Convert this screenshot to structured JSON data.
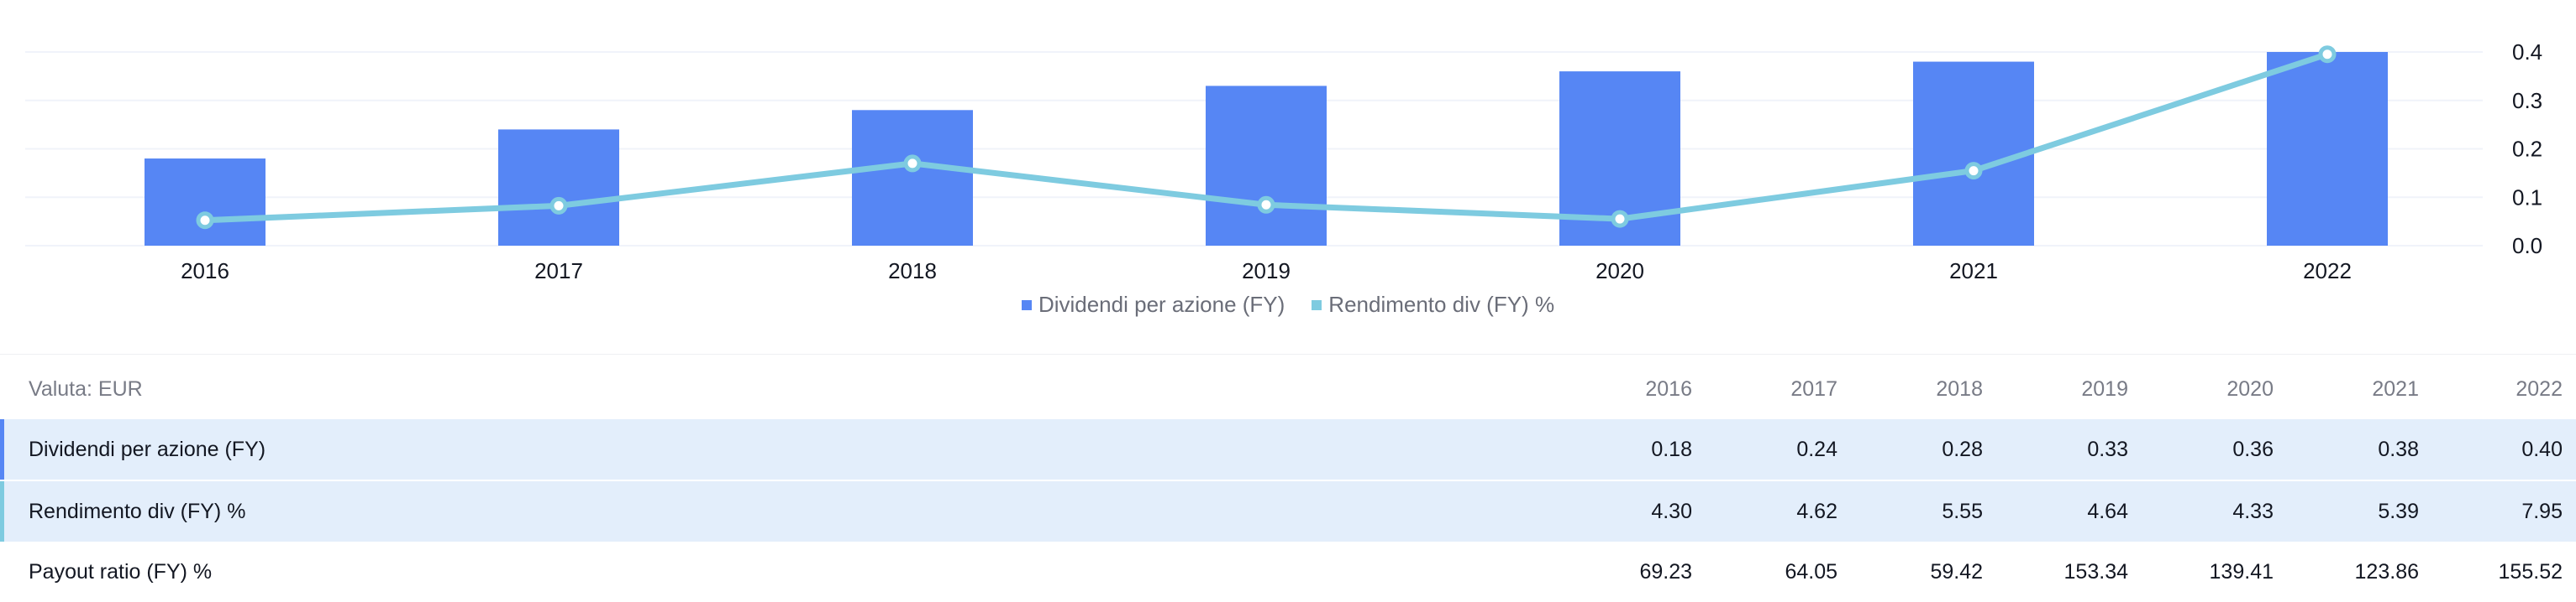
{
  "chart_data": {
    "type": "bar",
    "categories": [
      "2016",
      "2017",
      "2018",
      "2019",
      "2020",
      "2021",
      "2022"
    ],
    "series": [
      {
        "name": "Dividendi per azione (FY)",
        "kind": "bar",
        "color": "#5686f4",
        "values": [
          0.18,
          0.24,
          0.28,
          0.33,
          0.36,
          0.38,
          0.4
        ]
      },
      {
        "name": "Rendimento div (FY) %",
        "kind": "line",
        "color": "#7ecbe0",
        "values": [
          4.3,
          4.62,
          5.55,
          4.64,
          4.33,
          5.39,
          7.95
        ]
      }
    ],
    "y_ticks": [
      "0.4",
      "0.3",
      "0.2",
      "0.1",
      "0.0"
    ],
    "ylim": [
      0,
      0.4
    ],
    "legend_position": "bottom-center",
    "grid": true
  },
  "legend": {
    "items": [
      {
        "label": "Dividendi per azione (FY)",
        "color": "#5686f4"
      },
      {
        "label": "Rendimento div (FY) %",
        "color": "#7ecbe0"
      }
    ]
  },
  "table": {
    "currency_label": "Valuta: EUR",
    "years": [
      "2016",
      "2017",
      "2018",
      "2019",
      "2020",
      "2021",
      "2022"
    ],
    "rows": [
      {
        "label": "Dividendi per azione (FY)",
        "accent": "#5686f4",
        "values": [
          "0.18",
          "0.24",
          "0.28",
          "0.33",
          "0.36",
          "0.38",
          "0.40"
        ]
      },
      {
        "label": "Rendimento div (FY) %",
        "accent": "#7ecbe0",
        "values": [
          "4.30",
          "4.62",
          "5.55",
          "4.64",
          "4.33",
          "5.39",
          "7.95"
        ]
      },
      {
        "label": "Payout ratio (FY) %",
        "accent": "",
        "values": [
          "69.23",
          "64.05",
          "59.42",
          "153.34",
          "139.41",
          "123.86",
          "155.52"
        ]
      }
    ]
  }
}
